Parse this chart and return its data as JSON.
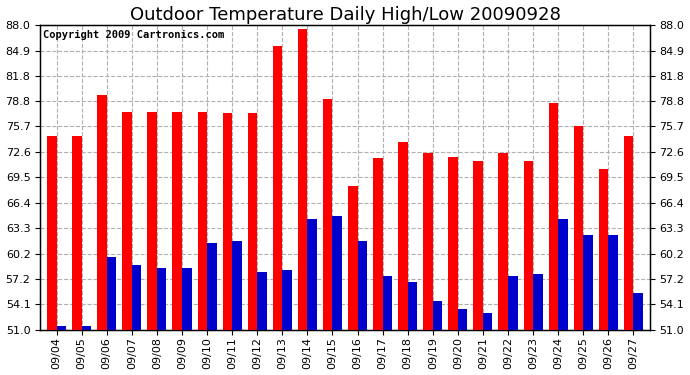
{
  "title": "Outdoor Temperature Daily High/Low 20090928",
  "copyright": "Copyright 2009 Cartronics.com",
  "dates": [
    "09/04",
    "09/05",
    "09/06",
    "09/07",
    "09/08",
    "09/09",
    "09/10",
    "09/11",
    "09/12",
    "09/13",
    "09/14",
    "09/15",
    "09/16",
    "09/17",
    "09/18",
    "09/19",
    "09/20",
    "09/21",
    "09/22",
    "09/23",
    "09/24",
    "09/25",
    "09/26",
    "09/27"
  ],
  "highs": [
    74.5,
    74.5,
    79.5,
    77.5,
    77.5,
    77.5,
    77.5,
    77.3,
    77.3,
    85.5,
    87.5,
    79.0,
    68.5,
    71.8,
    73.8,
    72.5,
    72.0,
    71.5,
    72.5,
    71.5,
    78.5,
    75.8,
    70.5,
    74.5
  ],
  "lows": [
    51.5,
    51.5,
    59.8,
    58.8,
    58.5,
    58.5,
    61.5,
    61.8,
    58.0,
    58.2,
    64.5,
    64.8,
    61.8,
    57.5,
    56.8,
    54.5,
    53.5,
    53.0,
    57.5,
    57.8,
    64.5,
    62.5,
    62.5,
    55.5
  ],
  "high_color": "#ff0000",
  "low_color": "#0000cc",
  "background_color": "#ffffff",
  "grid_color": "#b0b0b0",
  "yticks": [
    51.0,
    54.1,
    57.2,
    60.2,
    63.3,
    66.4,
    69.5,
    72.6,
    75.7,
    78.8,
    81.8,
    84.9,
    88.0
  ],
  "ymin": 51.0,
  "ymax": 88.0,
  "title_fontsize": 13,
  "tick_fontsize": 8,
  "copyright_fontsize": 7.5
}
